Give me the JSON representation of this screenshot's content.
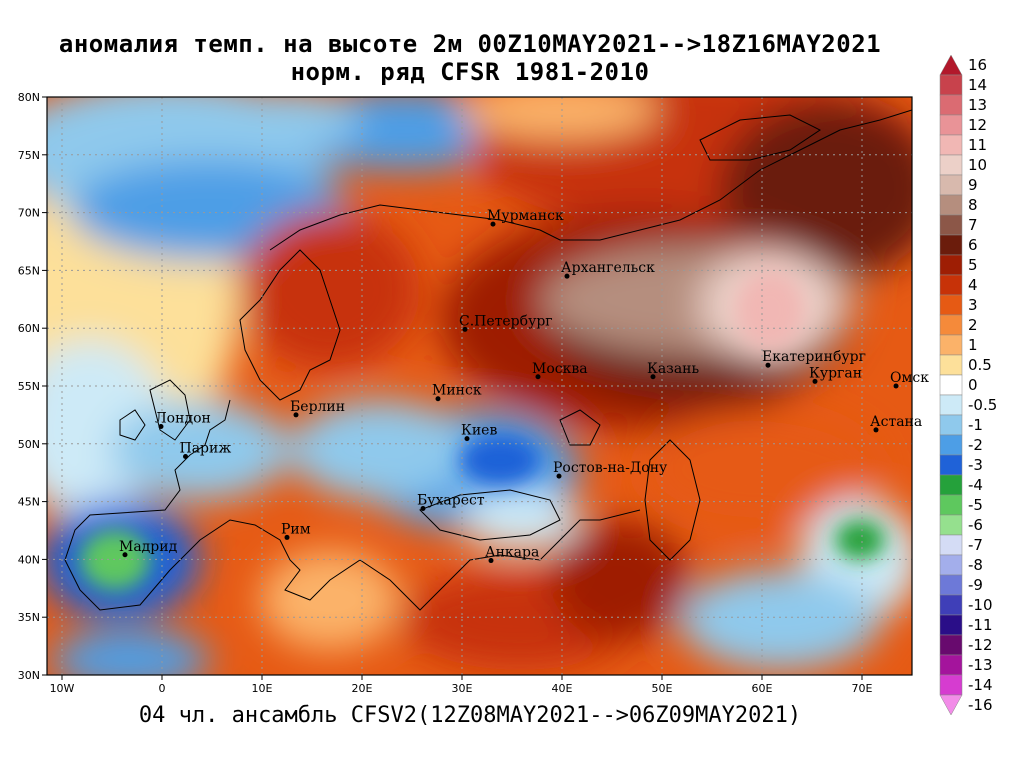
{
  "header": {
    "title_line1": "аномалия темп. на высоте 2м 00Z10MAY2021-->18Z16MAY2021",
    "title_line2": "норм. ряд CFSR 1981-2010",
    "footer": "04 чл. ансамбль CFSV2(12Z08MAY2021-->06Z09MAY2021)"
  },
  "axes": {
    "lon_labels": [
      "10W",
      "0",
      "10E",
      "20E",
      "30E",
      "40E",
      "50E",
      "60E",
      "70E"
    ],
    "lon_values": [
      -10,
      0,
      10,
      20,
      30,
      40,
      50,
      60,
      70
    ],
    "lat_labels": [
      "30N",
      "35N",
      "40N",
      "45N",
      "50N",
      "55N",
      "60N",
      "65N",
      "70N",
      "75N",
      "80N"
    ],
    "lat_values": [
      30,
      35,
      40,
      45,
      50,
      55,
      60,
      65,
      70,
      75,
      80
    ],
    "lon_range": [
      -11.5,
      75
    ],
    "lat_range": [
      30,
      80
    ]
  },
  "cities": [
    {
      "name": "Мурманск",
      "lon": 33.1,
      "lat": 69.0
    },
    {
      "name": "Архангельск",
      "lon": 40.5,
      "lat": 64.5
    },
    {
      "name": "С.Петербург",
      "lon": 30.3,
      "lat": 59.9
    },
    {
      "name": "Москва",
      "lon": 37.6,
      "lat": 55.8
    },
    {
      "name": "Казань",
      "lon": 49.1,
      "lat": 55.8
    },
    {
      "name": "Екатеринбург",
      "lon": 60.6,
      "lat": 56.8
    },
    {
      "name": "Курган",
      "lon": 65.3,
      "lat": 55.4
    },
    {
      "name": "Омск",
      "lon": 73.4,
      "lat": 55.0
    },
    {
      "name": "Астана",
      "lon": 71.4,
      "lat": 51.2
    },
    {
      "name": "Минск",
      "lon": 27.6,
      "lat": 53.9
    },
    {
      "name": "Берлин",
      "lon": 13.4,
      "lat": 52.5
    },
    {
      "name": "Лондон",
      "lon": -0.1,
      "lat": 51.5
    },
    {
      "name": "Париж",
      "lon": 2.35,
      "lat": 48.9
    },
    {
      "name": "Киев",
      "lon": 30.5,
      "lat": 50.45
    },
    {
      "name": "Ростов-на-Дону",
      "lon": 39.7,
      "lat": 47.2
    },
    {
      "name": "Бухарест",
      "lon": 26.1,
      "lat": 44.4
    },
    {
      "name": "Рим",
      "lon": 12.5,
      "lat": 41.9
    },
    {
      "name": "Мадрид",
      "lon": -3.7,
      "lat": 40.4
    },
    {
      "name": "Анкара",
      "lon": 32.9,
      "lat": 39.9
    }
  ],
  "colorbar": {
    "labels": [
      "16",
      "14",
      "13",
      "12",
      "11",
      "10",
      "9",
      "8",
      "7",
      "6",
      "5",
      "4",
      "3",
      "2",
      "1",
      "0.5",
      "0",
      "-0.5",
      "-1",
      "-2",
      "-3",
      "-4",
      "-5",
      "-6",
      "-7",
      "-8",
      "-9",
      "-10",
      "-11",
      "-12",
      "-13",
      "-14",
      "-16"
    ],
    "colors": [
      "#b2182b",
      "#c8424c",
      "#db6b72",
      "#e99397",
      "#f1b7b4",
      "#ecd0c8",
      "#d8b9ad",
      "#b58e7e",
      "#8c5748",
      "#6b1c0c",
      "#9e1e04",
      "#c73208",
      "#e65a14",
      "#f58a3a",
      "#fbb269",
      "#fde09a",
      "#ffffff",
      "#cdeaf7",
      "#8fc9ec",
      "#4d9ee6",
      "#1f62d8",
      "#25a13b",
      "#5ec85e",
      "#95e08e",
      "#d4dcf5",
      "#a3aeeb",
      "#6d79d8",
      "#3f3fb8",
      "#2a0e88",
      "#680a6e",
      "#a4149c",
      "#d63cd0",
      "#f28ce8"
    ]
  },
  "field_regions": [
    {
      "name": "atlantic-cold",
      "lon": -8,
      "lat": 63,
      "value": -1.5
    },
    {
      "name": "barents-cold",
      "lon": 20,
      "lat": 73,
      "value": -2
    },
    {
      "name": "iberia",
      "lon": -4,
      "lat": 40,
      "value": -4
    },
    {
      "name": "ukraine",
      "lon": 33,
      "lat": 48,
      "value": -1.5
    },
    {
      "name": "scandinavia",
      "lon": 20,
      "lat": 64,
      "value": 4
    },
    {
      "name": "russia-warm",
      "lon": 45,
      "lat": 58,
      "value": 6
    },
    {
      "name": "ural-max",
      "lon": 60,
      "lat": 61,
      "value": 10
    },
    {
      "name": "arctic-russia",
      "lon": 65,
      "lat": 73,
      "value": 6
    },
    {
      "name": "turkey",
      "lon": 38,
      "lat": 37,
      "value": 3
    },
    {
      "name": "kazakhstan",
      "lon": 62,
      "lat": 47,
      "value": 3
    }
  ]
}
